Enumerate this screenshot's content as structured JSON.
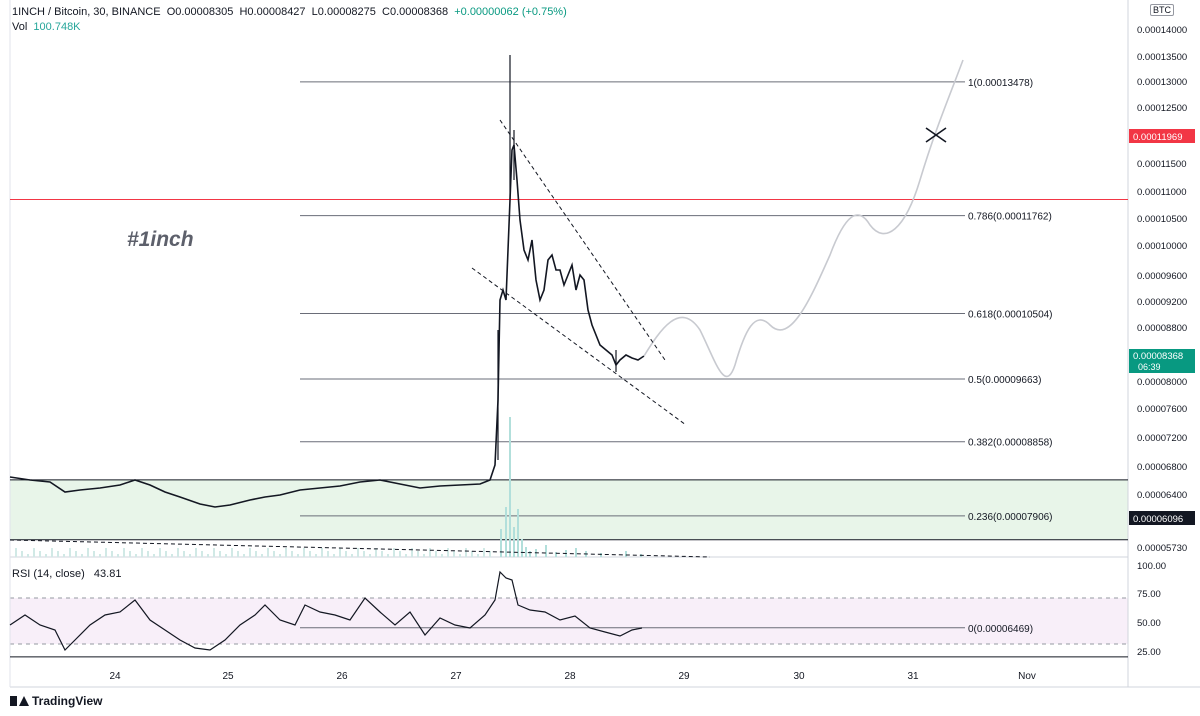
{
  "header": {
    "symbol": "1INCH / Bitcoin, 30, BINANCE",
    "open": "O0.00008305",
    "high": "H0.00008427",
    "low": "L0.00008275",
    "close": "C0.00008368",
    "change": "+0.00000062 (+0.75%)"
  },
  "volume": {
    "label": "Vol",
    "value": "100.748K"
  },
  "rsi": {
    "label": "RSI (14, close)",
    "value": "43.81",
    "levels": [
      "100.00",
      "75.00",
      "50.00",
      "25.00"
    ]
  },
  "watermark": "#1inch",
  "currency_badge": "BTC",
  "branding": "TradingView",
  "price_axis": {
    "ticks": [
      "0.00014000",
      "0.00013500",
      "0.00013000",
      "0.00012500",
      "0.00011500",
      "0.00011000",
      "0.00010500",
      "0.00010000",
      "0.00009600",
      "0.00009200",
      "0.00008800",
      "0.00008000",
      "0.00007600",
      "0.00007200",
      "0.00006800",
      "0.00006400",
      "0.00005730"
    ],
    "last_price": "0.00008368",
    "countdown": "06:39",
    "red_level": "0.00011969",
    "black_level": "0.00006096"
  },
  "colors": {
    "up": "#089981",
    "red_line": "#f23645",
    "zone": "#e8f5e9",
    "rsi_band": "#f3e5f5"
  },
  "chart_data": {
    "type": "candlestick",
    "x_ticks": [
      "24",
      "25",
      "26",
      "27",
      "28",
      "29",
      "30",
      "31",
      "Nov"
    ],
    "fib_levels": [
      {
        "ratio": "1",
        "label": "1(0.00013478)",
        "value": 0.00013478
      },
      {
        "ratio": "0.786",
        "label": "0.786(0.00011762)",
        "value": 0.00011762
      },
      {
        "ratio": "0.618",
        "label": "0.618(0.00010504)",
        "value": 0.00010504
      },
      {
        "ratio": "0.5",
        "label": "0.5(0.00009663)",
        "value": 9.663e-05
      },
      {
        "ratio": "0.382",
        "label": "0.382(0.00008858)",
        "value": 8.858e-05
      },
      {
        "ratio": "0.236",
        "label": "0.236(0.00007906)",
        "value": 7.906e-05
      },
      {
        "ratio": "0",
        "label": "0(0.00006469)",
        "value": 6.469e-05
      }
    ],
    "horizontal_lines": [
      0.00011969,
      8.368e-05,
      7.6e-05,
      6.096e-05
    ],
    "support_zone": [
      7.6e-05,
      8.368e-05
    ]
  }
}
